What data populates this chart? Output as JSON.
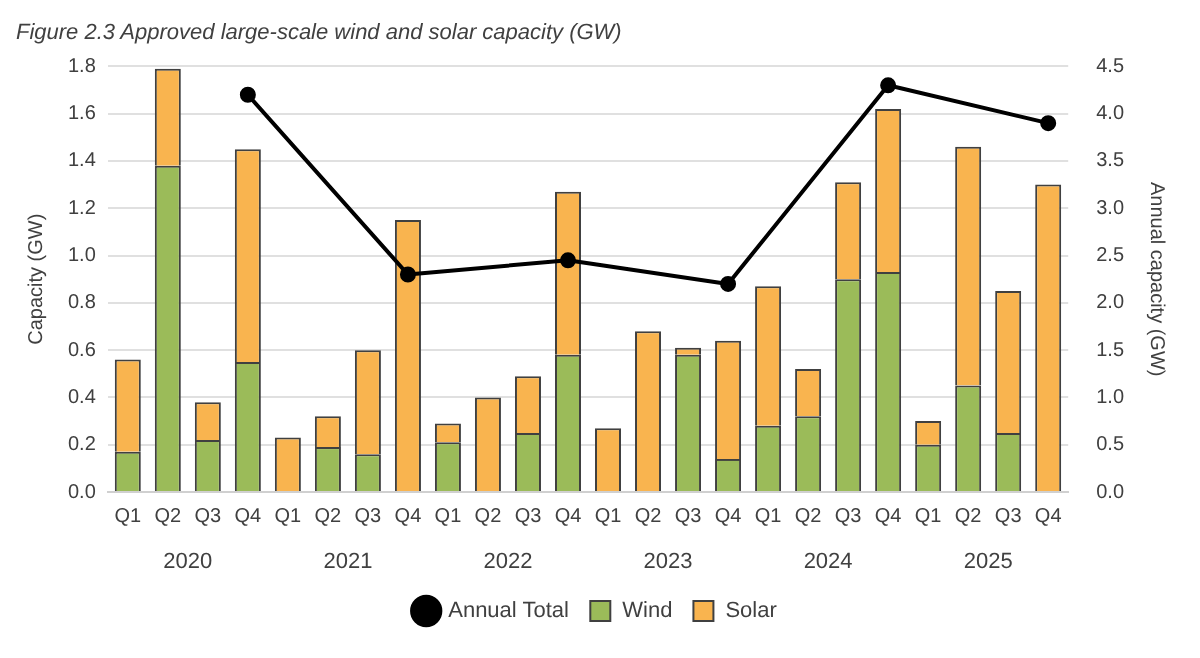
{
  "chart_data": {
    "type": "bar",
    "title": "Figure 2.3 Approved large-scale wind and solar capacity (GW)",
    "ylabel": "Capacity (GW)",
    "y2label": "Annual capacity (GW)",
    "categories": [
      "Q1",
      "Q2",
      "Q3",
      "Q4",
      "Q1",
      "Q2",
      "Q3",
      "Q4",
      "Q1",
      "Q2",
      "Q3",
      "Q4",
      "Q1",
      "Q2",
      "Q3",
      "Q4",
      "Q1",
      "Q2",
      "Q3",
      "Q4",
      "Q1",
      "Q2",
      "Q3",
      "Q4"
    ],
    "stacked": true,
    "series": [
      {
        "name": "Wind",
        "color": "#9bbb59",
        "values": [
          0.17,
          1.38,
          0.22,
          0.55,
          0,
          0.19,
          0.16,
          0,
          0.21,
          0,
          0.25,
          0.58,
          0,
          0,
          0.58,
          0.14,
          0.28,
          0.32,
          0.9,
          0.93,
          0.2,
          0.45,
          0.25,
          0
        ]
      },
      {
        "name": "Solar",
        "color": "#f9b44f",
        "values": [
          0.39,
          0.41,
          0.16,
          0.9,
          0.23,
          0.13,
          0.44,
          1.15,
          0.08,
          0.4,
          0.24,
          0.69,
          0.27,
          0.68,
          0.03,
          0.5,
          0.59,
          0.2,
          0.41,
          0.69,
          0.1,
          1.01,
          0.6,
          1.3
        ]
      },
      {
        "name": "Annual Total",
        "type": "line",
        "axis": "y2",
        "color": "#000000",
        "marker": "circle",
        "values": [
          null,
          null,
          null,
          4.2,
          null,
          null,
          null,
          2.3,
          null,
          null,
          null,
          2.45,
          null,
          null,
          null,
          2.2,
          null,
          null,
          null,
          4.3,
          null,
          null,
          null,
          3.9
        ]
      }
    ],
    "ylim": [
      0,
      1.8
    ],
    "yticks": [
      {
        "value": 0,
        "label": "0.0"
      },
      {
        "value": 0.2,
        "label": "0.2"
      },
      {
        "value": 0.4,
        "label": "0.4"
      },
      {
        "value": 0.6,
        "label": "0.6"
      },
      {
        "value": 0.8,
        "label": "0.8"
      },
      {
        "value": 1,
        "label": "1.0"
      },
      {
        "value": 1.2,
        "label": "1.2"
      },
      {
        "value": 1.4,
        "label": "1.4"
      },
      {
        "value": 1.6,
        "label": "1.6"
      },
      {
        "value": 1.8,
        "label": "1.8"
      }
    ],
    "y2lim": [
      0,
      4.5
    ],
    "y2ticks": [
      {
        "value": 0,
        "label": "0.0"
      },
      {
        "value": 0.5,
        "label": "0.5"
      },
      {
        "value": 1,
        "label": "1.0"
      },
      {
        "value": 1.5,
        "label": "1.5"
      },
      {
        "value": 2,
        "label": "2.0"
      },
      {
        "value": 2.5,
        "label": "2.5"
      },
      {
        "value": 3,
        "label": "3.0"
      },
      {
        "value": 3.5,
        "label": "3.5"
      },
      {
        "value": 4,
        "label": "4.0"
      },
      {
        "value": 4.5,
        "label": "4.5"
      }
    ],
    "annotations": [
      "2020",
      "2021",
      "2022",
      "2023",
      "2024",
      "2025"
    ],
    "grid": "y",
    "legend": "bottom"
  }
}
